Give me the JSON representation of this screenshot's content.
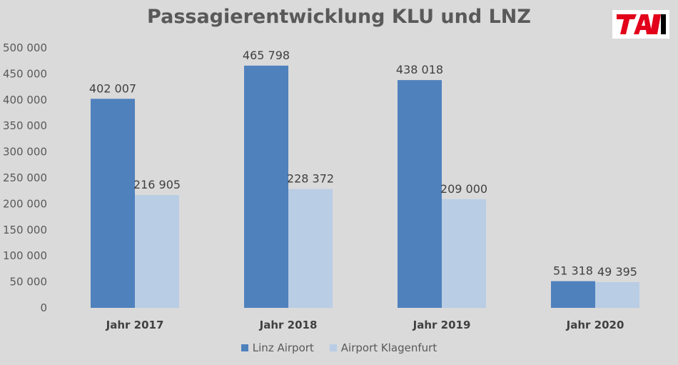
{
  "chart_data": {
    "type": "bar",
    "title": "Passagierentwicklung KLU und LNZ",
    "categories": [
      "Jahr 2017",
      "Jahr 2018",
      "Jahr 2019",
      "Jahr 2020"
    ],
    "series": [
      {
        "name": "Linz Airport",
        "color": "#4f81bd",
        "values": [
          402007,
          465798,
          438018,
          51318
        ],
        "labels": [
          "402 007",
          "465 798",
          "438 018",
          "51 318"
        ]
      },
      {
        "name": "Airport Klagenfurt",
        "color": "#b9cde5",
        "values": [
          216905,
          228372,
          209000,
          49395
        ],
        "labels": [
          "216 905",
          "228 372",
          "209 000",
          "49 395"
        ]
      }
    ],
    "ylim": [
      0,
      500000
    ],
    "yticks": [
      0,
      50000,
      100000,
      150000,
      200000,
      250000,
      300000,
      350000,
      400000,
      450000,
      500000
    ],
    "ytick_labels": [
      "0",
      "50 000",
      "100 000",
      "150 000",
      "200 000",
      "250 000",
      "300 000",
      "350 000",
      "400 000",
      "450 000",
      "500 000"
    ],
    "grid": false,
    "legend_position": "bottom",
    "xlabel": "",
    "ylabel": ""
  },
  "logo": {
    "text": "TAI",
    "colors": [
      "#e2001a",
      "#000000"
    ]
  }
}
